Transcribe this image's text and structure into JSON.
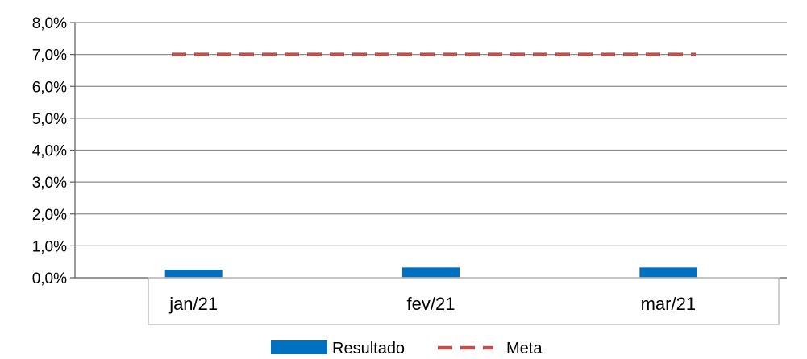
{
  "chart_data": {
    "type": "bar",
    "categories": [
      "jan/21",
      "fev/21",
      "mar/21"
    ],
    "series": [
      {
        "name": "Resultado",
        "kind": "bar",
        "color": "#0070C0",
        "values": [
          0.25,
          0.32,
          0.32
        ]
      },
      {
        "name": "Meta",
        "kind": "line",
        "style": "dashed",
        "color": "#C0504D",
        "values": [
          7.0,
          7.0,
          7.0
        ]
      }
    ],
    "title": "",
    "xlabel": "",
    "ylabel": "",
    "ylim": [
      0,
      8
    ],
    "yticks": [
      {
        "value": 0,
        "label": "0,0%"
      },
      {
        "value": 1,
        "label": "1,0%"
      },
      {
        "value": 2,
        "label": "2,0%"
      },
      {
        "value": 3,
        "label": "3,0%"
      },
      {
        "value": 4,
        "label": "4,0%"
      },
      {
        "value": 5,
        "label": "5,0%"
      },
      {
        "value": 6,
        "label": "6,0%"
      },
      {
        "value": 7,
        "label": "7,0%"
      },
      {
        "value": 8,
        "label": "8,0%"
      }
    ],
    "grid": true,
    "legend": "bottom",
    "colors": {
      "gridline": "#8C8C8C",
      "axis": "#595959",
      "category_box": "#BFBFBF"
    }
  }
}
